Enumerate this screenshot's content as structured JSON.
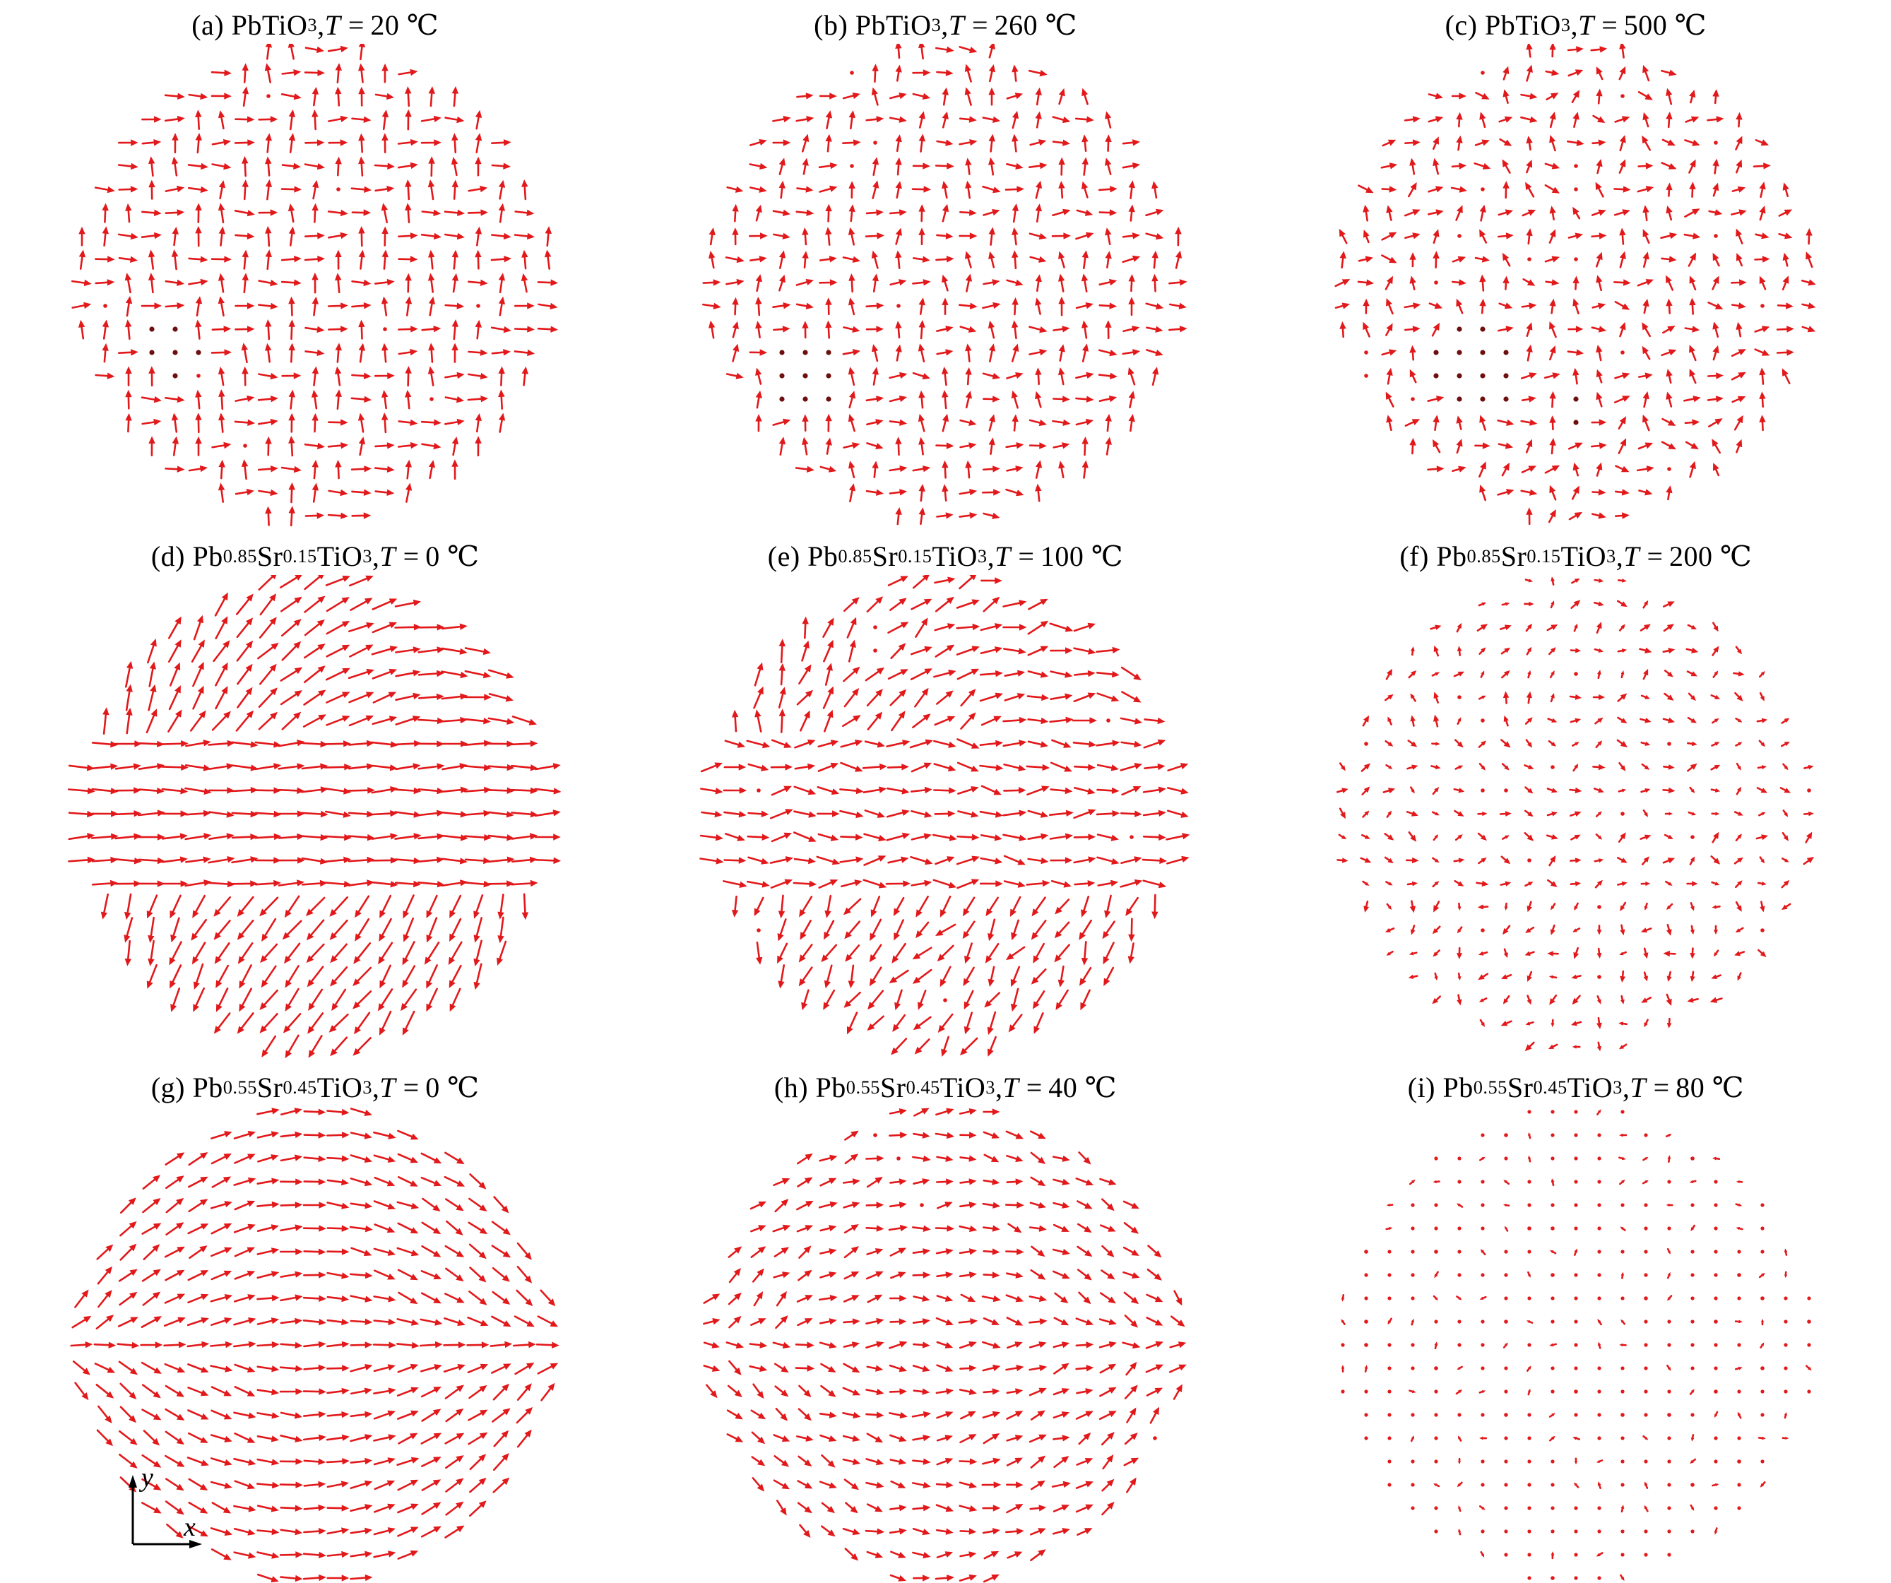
{
  "figure": {
    "description_visible_text_only": "3x3 grid of red quiver (vector-field) plots of local dipole patterns in circular nanoparticles",
    "axis_indicator": {
      "x_label": "x",
      "y_label": "y"
    },
    "colors": {
      "arrow": "#e2191b",
      "dead_dot": "#6e0f0f",
      "text": "#000000",
      "background": "#ffffff"
    }
  },
  "chart_data": [
    {
      "type": "quiver",
      "panel_id": "a",
      "caption": {
        "index": "(a)",
        "formula": "PbTiO3",
        "temp_symbol": "T",
        "temp_value": 20,
        "temp_unit": "℃"
      },
      "caption_text": "(a) PbTiO3, T = 20 ℃",
      "material": "PbTiO3",
      "temperature_c": 20,
      "pattern": "90-degree zigzag stripe domains (herringbone): polarization alternates between +y and +x in diagonal stripes; few near-zero (dark dot) sites lower-left",
      "grid": {
        "n": 21,
        "shape": "circle"
      },
      "field": {
        "kind": "herringbone",
        "stripe_width": 0.2,
        "amplitude": 0.97,
        "disorder": 0.14,
        "len_scale": 0.75,
        "dead_scatter": 0.012,
        "dead_clusters": [
          {
            "cx": -0.62,
            "cy": -0.28,
            "r": 0.13
          }
        ],
        "seed": 1
      }
    },
    {
      "type": "quiver",
      "panel_id": "b",
      "caption": {
        "index": "(b)",
        "formula": "PbTiO3",
        "temp_symbol": "T",
        "temp_value": 260,
        "temp_unit": "℃"
      },
      "caption_text": "(b) PbTiO3, T = 260 ℃",
      "material": "PbTiO3",
      "temperature_c": 260,
      "pattern": "zigzag 90-degree stripe domains, slightly more disordered; cluster of near-zero dipoles (dark dots) lower-left",
      "grid": {
        "n": 21,
        "shape": "circle"
      },
      "field": {
        "kind": "herringbone",
        "stripe_width": 0.2,
        "amplitude": 0.9,
        "disorder": 0.22,
        "len_scale": 0.75,
        "dead_scatter": 0.03,
        "dead_clusters": [
          {
            "cx": -0.58,
            "cy": -0.42,
            "r": 0.17
          }
        ],
        "seed": 2
      }
    },
    {
      "type": "quiver",
      "panel_id": "c",
      "caption": {
        "index": "(c)",
        "formula": "PbTiO3",
        "temp_symbol": "T",
        "temp_value": 500,
        "temp_unit": "℃"
      },
      "caption_text": "(c) PbTiO3, T = 500 ℃",
      "material": "PbTiO3",
      "temperature_c": 500,
      "pattern": "partially disordered zigzag domains; shortened arrows, many near-zero dipole dots, large dark-dot cluster lower-left",
      "grid": {
        "n": 21,
        "shape": "circle"
      },
      "field": {
        "kind": "herringbone",
        "stripe_width": 0.2,
        "amplitude": 0.82,
        "disorder": 0.38,
        "len_scale": 0.75,
        "dead_scatter": 0.07,
        "dead_clusters": [
          {
            "cx": -0.42,
            "cy": -0.38,
            "r": 0.2
          },
          {
            "cx": 0.0,
            "cy": -0.55,
            "r": 0.09
          }
        ],
        "seed": 3
      }
    },
    {
      "type": "quiver",
      "panel_id": "d",
      "caption": {
        "index": "(d)",
        "formula": "Pb0.85Sr0.15TiO3",
        "temp_symbol": "T",
        "temp_value": 0,
        "temp_unit": "℃"
      },
      "caption_text": "(d) Pb0.85Sr0.15TiO3, T = 0 ℃",
      "material": "Pb0.85Sr0.15TiO3",
      "temperature_c": 0,
      "pattern": "flux-closure state: strong horizontal +x band across the middle, upward dipoles upper-left, downward dipoles along the bottom",
      "grid": {
        "n": 21,
        "shape": "circle"
      },
      "field": {
        "kind": "closure",
        "amplitude": 0.97,
        "disorder": 0.12,
        "len_scale": 1.0,
        "dead_scatter": 0.0,
        "dead_clusters": [],
        "seed": 4
      }
    },
    {
      "type": "quiver",
      "panel_id": "e",
      "caption": {
        "index": "(e)",
        "formula": "Pb0.85Sr0.15TiO3",
        "temp_symbol": "T",
        "temp_value": 100,
        "temp_unit": "℃"
      },
      "caption_text": "(e) Pb0.85Sr0.15TiO3, T = 100 ℃",
      "material": "Pb0.85Sr0.15TiO3",
      "temperature_c": 100,
      "pattern": "same flux-closure state with reduced magnitude and more angular disorder",
      "grid": {
        "n": 21,
        "shape": "circle"
      },
      "field": {
        "kind": "closure",
        "amplitude": 0.88,
        "disorder": 0.3,
        "len_scale": 1.0,
        "dead_scatter": 0.01,
        "dead_clusters": [],
        "seed": 5
      }
    },
    {
      "type": "quiver",
      "panel_id": "f",
      "caption": {
        "index": "(f)",
        "formula": "Pb0.85Sr0.15TiO3",
        "temp_symbol": "T",
        "temp_value": 200,
        "temp_unit": "℃"
      },
      "caption_text": "(f) Pb0.85Sr0.15TiO3, T = 200 ℃",
      "material": "Pb0.85Sr0.15TiO3",
      "temperature_c": 200,
      "pattern": "near-paraelectric: very short, strongly disordered dipoles (mostly dots), residual vertical arrows at rim",
      "grid": {
        "n": 21,
        "shape": "circle"
      },
      "field": {
        "kind": "closure",
        "amplitude": 0.45,
        "disorder": 0.78,
        "len_scale": 1.0,
        "dead_scatter": 0.06,
        "dead_clusters": [],
        "seed": 6
      }
    },
    {
      "type": "quiver",
      "panel_id": "g",
      "caption": {
        "index": "(g)",
        "formula": "Pb0.55Sr0.45TiO3",
        "temp_symbol": "T",
        "temp_value": 0,
        "temp_unit": "℃"
      },
      "caption_text": "(g) Pb0.55Sr0.45TiO3, T = 0 ℃",
      "material": "Pb0.55Sr0.45TiO3",
      "temperature_c": 0,
      "pattern": "swirling quasi-monodomain: long +x arrows through the middle, fanning up-right at the top-left and down at the bottom-left (vortex-like closure)",
      "grid": {
        "n": 21,
        "shape": "circle"
      },
      "field": {
        "kind": "swirl",
        "amplitude": 0.97,
        "disorder": 0.1,
        "len_scale": 0.85,
        "dead_scatter": 0.0,
        "dead_clusters": [],
        "seed": 7
      }
    },
    {
      "type": "quiver",
      "panel_id": "h",
      "caption": {
        "index": "(h)",
        "formula": "Pb0.55Sr0.45TiO3",
        "temp_symbol": "T",
        "temp_value": 40,
        "temp_unit": "℃"
      },
      "caption_text": "(h) Pb0.55Sr0.45TiO3, T = 40 ℃",
      "material": "Pb0.55Sr0.45TiO3",
      "temperature_c": 40,
      "pattern": "weakened swirl state: shorter mostly +x arrows with moderate disorder",
      "grid": {
        "n": 21,
        "shape": "circle"
      },
      "field": {
        "kind": "swirl",
        "amplitude": 0.85,
        "disorder": 0.27,
        "len_scale": 0.8,
        "dead_scatter": 0.01,
        "dead_clusters": [],
        "seed": 8
      }
    },
    {
      "type": "quiver",
      "panel_id": "i",
      "caption": {
        "index": "(i)",
        "formula": "Pb0.55Sr0.45TiO3",
        "temp_symbol": "T",
        "temp_value": 80,
        "temp_unit": "℃"
      },
      "caption_text": "(i) Pb0.55Sr0.45TiO3, T = 80 ℃",
      "material": "Pb0.55Sr0.45TiO3",
      "temperature_c": 80,
      "pattern": "paraelectric-like: tiny randomly oriented dipoles rendered as small arrowheads/dots",
      "grid": {
        "n": 21,
        "shape": "circle"
      },
      "field": {
        "kind": "random",
        "amplitude": 0.32,
        "disorder": 1.0,
        "len_scale": 0.8,
        "dead_scatter": 0.08,
        "dead_clusters": [],
        "seed": 9
      }
    }
  ]
}
